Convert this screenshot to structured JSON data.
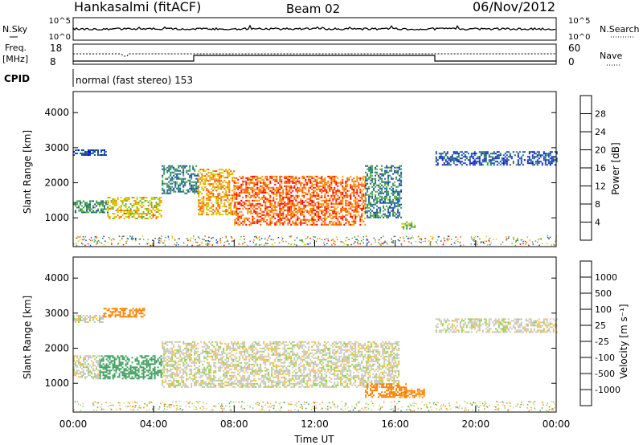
{
  "header": {
    "station": "Hankasalmi (fitACF)",
    "beam": "Beam 02",
    "date": "06/Nov/2012"
  },
  "top_panels": {
    "nsky_label": "N.Sky",
    "nsky_ticks": [
      "10^5",
      "10^0"
    ],
    "nsearch_label": "N.Search",
    "nsearch_ticks": [
      "10^5",
      "10^0"
    ],
    "freq_label": "Freq.",
    "freq_unit": "[MHz]",
    "freq_ticks": [
      "18",
      "8"
    ],
    "nave_label": "Nave",
    "nave_ticks": [
      "60",
      "0"
    ],
    "cpid_label": "CPID",
    "cpid_text": "normal (fast stereo) 153"
  },
  "chart_data": [
    {
      "type": "heatmap",
      "name": "power",
      "ylabel": "Slant Range [km]",
      "yticks": [
        "4000",
        "3000",
        "2000",
        "1000"
      ],
      "ylim": [
        180,
        4600
      ],
      "xlim": [
        0,
        24
      ],
      "xticks": [
        "00:00",
        "04:00",
        "08:00",
        "12:00",
        "16:00",
        "20:00",
        "00:00"
      ],
      "colorbar": {
        "label": "Power [dB]",
        "ticks": [
          "28",
          "24",
          "20",
          "16",
          "12",
          "8",
          "4"
        ],
        "colors": [
          "#ff0000",
          "#ff5a00",
          "#ff9a00",
          "#c8d400",
          "#5fb040",
          "#2f8f5a",
          "#1a5a9a",
          "#2030c0",
          "#0000ff"
        ]
      },
      "scatter_regions": [
        {
          "t": [
            0.0,
            1.6
          ],
          "r": [
            2800,
            2950
          ],
          "value": 6
        },
        {
          "t": [
            0.0,
            1.7
          ],
          "r": [
            1150,
            1500
          ],
          "value": 12
        },
        {
          "t": [
            1.7,
            4.4
          ],
          "r": [
            1000,
            1600
          ],
          "value": 20
        },
        {
          "t": [
            4.4,
            6.2
          ],
          "r": [
            1700,
            2500
          ],
          "value": 10
        },
        {
          "t": [
            6.2,
            8.0
          ],
          "r": [
            1100,
            2400
          ],
          "value": 22
        },
        {
          "t": [
            8.0,
            14.5
          ],
          "r": [
            800,
            2200
          ],
          "value": 26
        },
        {
          "t": [
            14.5,
            16.3
          ],
          "r": [
            1000,
            2500
          ],
          "value": 10
        },
        {
          "t": [
            16.3,
            17.0
          ],
          "r": [
            700,
            900
          ],
          "value": 16
        },
        {
          "t": [
            18.0,
            24.0
          ],
          "r": [
            2500,
            2900
          ],
          "value": 6
        }
      ]
    },
    {
      "type": "heatmap",
      "name": "velocity",
      "ylabel": "Slant Range [km]",
      "yticks": [
        "4000",
        "3000",
        "2000",
        "1000"
      ],
      "ylim": [
        180,
        4600
      ],
      "xlim": [
        0,
        24
      ],
      "xlabel": "Time UT",
      "xticks": [
        "00:00",
        "04:00",
        "08:00",
        "12:00",
        "16:00",
        "20:00",
        "00:00"
      ],
      "colorbar": {
        "label": "Velocity [m s⁻¹]",
        "ticks": [
          "1000",
          "500",
          "100",
          "25",
          "-25",
          "-100",
          "-500",
          "-1000"
        ],
        "colors": [
          "#1b3fbf",
          "#2f6f9a",
          "#3f9f5f",
          "#90d050",
          "#c8c8c0",
          "#ffbf40",
          "#ff8000",
          "#ff3000",
          "#ff0000"
        ]
      },
      "scatter_regions": [
        {
          "t": [
            0.0,
            1.5
          ],
          "r": [
            2750,
            2950
          ],
          "value": 0
        },
        {
          "t": [
            0.0,
            1.3
          ],
          "r": [
            1150,
            1800
          ],
          "value": 0
        },
        {
          "t": [
            1.3,
            4.4
          ],
          "r": [
            1150,
            1800
          ],
          "value": 200
        },
        {
          "t": [
            1.5,
            3.5
          ],
          "r": [
            2900,
            3150
          ],
          "value": -150
        },
        {
          "t": [
            4.4,
            16.2
          ],
          "r": [
            900,
            2200
          ],
          "value": 0
        },
        {
          "t": [
            14.5,
            16.5
          ],
          "r": [
            600,
            1000
          ],
          "value": -400
        },
        {
          "t": [
            16.2,
            17.4
          ],
          "r": [
            600,
            850
          ],
          "value": -120
        },
        {
          "t": [
            18.0,
            24.0
          ],
          "r": [
            2450,
            2850
          ],
          "value": 0
        }
      ]
    }
  ]
}
